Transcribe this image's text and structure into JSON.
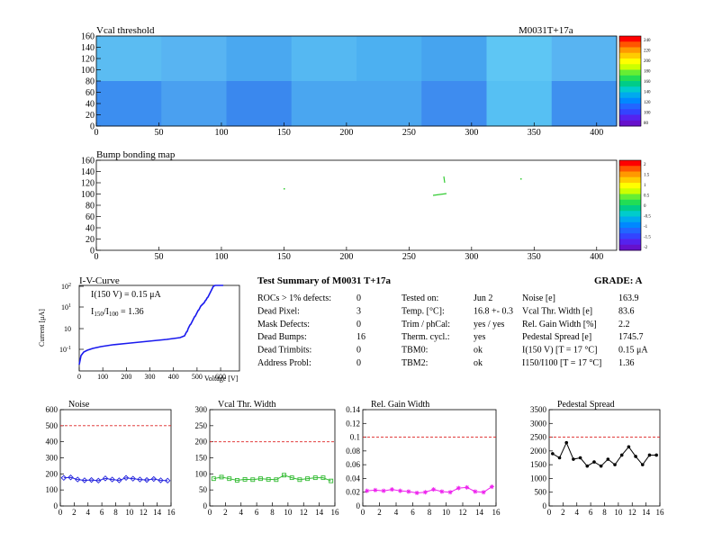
{
  "vcal_map": {
    "title": "Vcal threshold",
    "module": "M0031T+17a",
    "xticks": [
      "0",
      "50",
      "100",
      "150",
      "200",
      "250",
      "300",
      "350",
      "400"
    ],
    "yticks": [
      "0",
      "20",
      "40",
      "60",
      "80",
      "100",
      "120",
      "140",
      "160"
    ],
    "palette_labels": [
      "240",
      "220",
      "200",
      "180",
      "160",
      "140",
      "120",
      "100",
      "80"
    ]
  },
  "bump_map": {
    "title": "Bump bonding map",
    "xticks": [
      "0",
      "50",
      "100",
      "150",
      "200",
      "250",
      "300",
      "350",
      "400"
    ],
    "yticks": [
      "0",
      "20",
      "40",
      "60",
      "80",
      "100",
      "120",
      "140",
      "160"
    ],
    "palette_labels": [
      "2",
      "1.5",
      "1",
      "0.5",
      "0",
      "-0.5",
      "-1",
      "-1.5",
      "-2"
    ]
  },
  "iv": {
    "title": "I-V-Curve",
    "annot1": "I(150 V) = 0.15 μA",
    "annot2_main": "I",
    "annot2_sub1": "150",
    "annot2_mid": "/I",
    "annot2_sub2": "100",
    "annot2_val": " = 1.36",
    "xlabel": "Voltage [V]",
    "ylabel": "Current [μA]",
    "xticks": [
      "0",
      "100",
      "200",
      "300",
      "400",
      "500",
      "600"
    ],
    "ytick_base": "10",
    "ytick_exps": [
      "-1",
      "",
      "1",
      "2"
    ]
  },
  "summary": {
    "title": "Test Summary of M0031    T+17a",
    "grade": "GRADE:  A",
    "col1": [
      {
        "label": "ROCs > 1% defects:",
        "value": "0"
      },
      {
        "label": "Dead Pixel:",
        "value": "3"
      },
      {
        "label": "Mask Defects:",
        "value": "0"
      },
      {
        "label": "Dead Bumps:",
        "value": "16"
      },
      {
        "label": "Dead Trimbits:",
        "value": "0"
      },
      {
        "label": "Address Probl:",
        "value": "0"
      }
    ],
    "col2": [
      {
        "label": "Tested on:",
        "value": "Jun 2"
      },
      {
        "label": "Temp. [°C]:",
        "value": "16.8 +- 0.3"
      },
      {
        "label": "Trim / phCal:",
        "value": "yes / yes"
      },
      {
        "label": "Therm. cycl.:",
        "value": "yes"
      },
      {
        "label": "TBM0:",
        "value": "ok"
      },
      {
        "label": "TBM2:",
        "value": "ok"
      }
    ],
    "col3": [
      {
        "label": "Noise [e]",
        "value": "163.9"
      },
      {
        "label": "Vcal Thr. Width [e]",
        "value": "83.6"
      },
      {
        "label": "Rel. Gain Width [%]",
        "value": "2.2"
      },
      {
        "label": "Pedestal Spread [e]",
        "value": "1745.7"
      },
      {
        "label": "I(150 V) [T = 17 °C]",
        "value": "0.15 μA"
      },
      {
        "label": "I150/I100  [T = 17 °C]",
        "value": "1.36"
      }
    ]
  },
  "chart_data": [
    {
      "type": "line",
      "title": "Noise",
      "x": [
        0,
        1,
        2,
        3,
        4,
        5,
        6,
        7,
        8,
        9,
        10,
        11,
        12,
        13,
        14,
        15
      ],
      "values": [
        175,
        178,
        165,
        160,
        162,
        158,
        172,
        165,
        160,
        175,
        170,
        165,
        162,
        168,
        160,
        158
      ],
      "xlim": [
        0,
        16
      ],
      "ylim": [
        0,
        600
      ],
      "xticks": [
        "0",
        "2",
        "4",
        "6",
        "8",
        "10",
        "12",
        "14",
        "16"
      ],
      "yticks": [
        "0",
        "100",
        "200",
        "300",
        "400",
        "500",
        "600"
      ],
      "threshold": 500,
      "color": "#2222dd",
      "marker": "diamond"
    },
    {
      "type": "line",
      "title": "Vcal Thr. Width",
      "x": [
        0,
        1,
        2,
        3,
        4,
        5,
        6,
        7,
        8,
        9,
        10,
        11,
        12,
        13,
        14,
        15
      ],
      "values": [
        85,
        90,
        85,
        80,
        83,
        82,
        85,
        83,
        82,
        96,
        88,
        82,
        85,
        88,
        88,
        78
      ],
      "xlim": [
        0,
        16
      ],
      "ylim": [
        0,
        300
      ],
      "xticks": [
        "0",
        "2",
        "4",
        "6",
        "8",
        "10",
        "12",
        "14",
        "16"
      ],
      "yticks": [
        "0",
        "50",
        "100",
        "150",
        "200",
        "250",
        "300"
      ],
      "threshold": 200,
      "color": "#33bb33",
      "marker": "square"
    },
    {
      "type": "line",
      "title": "Rel. Gain Width",
      "x": [
        0,
        1,
        2,
        3,
        4,
        5,
        6,
        7,
        8,
        9,
        10,
        11,
        12,
        13,
        14,
        15
      ],
      "values": [
        0.022,
        0.023,
        0.022,
        0.024,
        0.022,
        0.021,
        0.019,
        0.02,
        0.024,
        0.021,
        0.02,
        0.026,
        0.027,
        0.021,
        0.02,
        0.028
      ],
      "xlim": [
        0,
        16
      ],
      "ylim": [
        0,
        0.14
      ],
      "xticks": [
        "0",
        "2",
        "4",
        "6",
        "8",
        "10",
        "12",
        "14",
        "16"
      ],
      "yticks": [
        "0",
        "0.02",
        "0.04",
        "0.06",
        "0.08",
        "0.1",
        "0.12",
        "0.14"
      ],
      "threshold": 0.1,
      "color": "#ee22ee",
      "marker": "star"
    },
    {
      "type": "line",
      "title": "Pedestal Spread",
      "x": [
        0,
        1,
        2,
        3,
        4,
        5,
        6,
        7,
        8,
        9,
        10,
        11,
        12,
        13,
        14,
        15
      ],
      "values": [
        1900,
        1750,
        2300,
        1700,
        1750,
        1450,
        1600,
        1450,
        1700,
        1500,
        1850,
        2150,
        1800,
        1500,
        1850,
        1850
      ],
      "xlim": [
        0,
        16
      ],
      "ylim": [
        0,
        3500
      ],
      "xticks": [
        "0",
        "2",
        "4",
        "6",
        "8",
        "10",
        "12",
        "14",
        "16"
      ],
      "yticks": [
        "0",
        "500",
        "1000",
        "1500",
        "2000",
        "2500",
        "3000",
        "3500"
      ],
      "threshold": 2500,
      "color": "#000000",
      "marker": "circle"
    }
  ]
}
